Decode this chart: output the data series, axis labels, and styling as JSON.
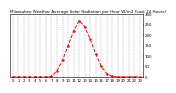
{
  "title": "Milwaukee Weather Average Solar Radiation per Hour W/m2 (Last 24 Hours)",
  "hours": [
    0,
    1,
    2,
    3,
    4,
    5,
    6,
    7,
    8,
    9,
    10,
    11,
    12,
    13,
    14,
    15,
    16,
    17,
    18,
    19,
    20,
    21,
    22,
    23
  ],
  "values": [
    0,
    0,
    0,
    0,
    0,
    0,
    0,
    2,
    30,
    80,
    150,
    220,
    270,
    240,
    180,
    110,
    50,
    15,
    2,
    0,
    0,
    0,
    0,
    0
  ],
  "line_color": "#ff0000",
  "bg_color": "#ffffff",
  "grid_color": "#888888",
  "ylim": [
    0,
    300
  ],
  "xlim": [
    -0.5,
    23.5
  ],
  "yticks": [
    0,
    50,
    100,
    150,
    200,
    250,
    300
  ],
  "tick_color": "#000000",
  "title_fontsize": 3.0,
  "tick_fontsize": 2.8,
  "linewidth": 0.7,
  "markersize": 1.5
}
